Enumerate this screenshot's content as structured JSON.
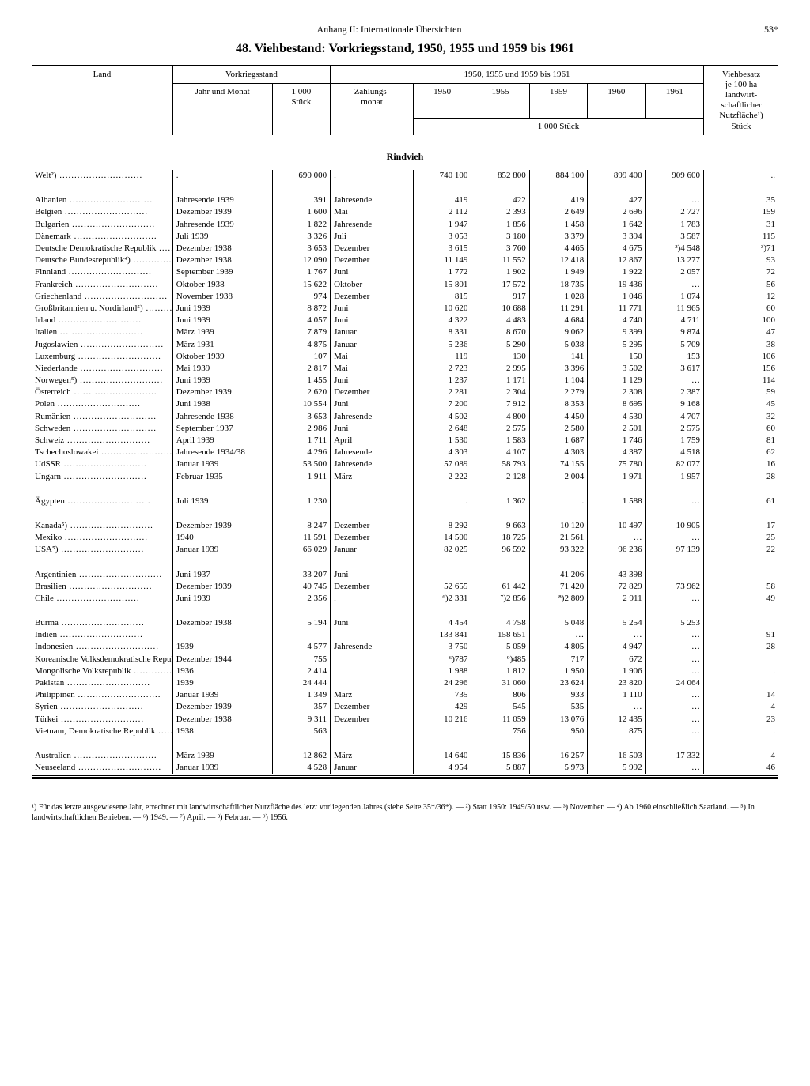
{
  "header": {
    "running": "Anhang II: Internationale Übersichten",
    "page": "53*",
    "title": "48. Viehbestand: Vorkriegsstand, 1950, 1955 und 1959 bis 1961"
  },
  "columns": {
    "land": "Land",
    "prewar": "Vorkriegsstand",
    "year_month": "Jahr und Monat",
    "thousand_head": "1 000\nStück",
    "period": "1950, 1955 und 1959 bis 1961",
    "count_month": "Zählungs-\nmonat",
    "y1950": "1950",
    "y1955": "1955",
    "y1959": "1959",
    "y1960": "1960",
    "y1961": "1961",
    "unit_bottom": "1 000 Stück",
    "density": "Viehbesatz\nje 100 ha\nlandwirt-\nschaftlicher\nNutzfläche¹)\nStück"
  },
  "section": "Rindvieh",
  "groups": [
    {
      "rows": [
        {
          "land": "Welt²)",
          "pre_month": ".",
          "pre": "690 000",
          "cmonth": ".",
          "v1950": "740 100",
          "v1955": "852 800",
          "v1959": "884 100",
          "v1960": "899 400",
          "v1961": "909 600",
          "density": ".."
        }
      ]
    },
    {
      "rows": [
        {
          "land": "Albanien",
          "pre_month": "Jahresende 1939",
          "pre": "391",
          "cmonth": "Jahresende",
          "v1950": "419",
          "v1955": "422",
          "v1959": "419",
          "v1960": "427",
          "v1961": "…",
          "density": "35"
        },
        {
          "land": "Belgien",
          "pre_month": "Dezember 1939",
          "pre": "1 600",
          "cmonth": "Mai",
          "v1950": "2 112",
          "v1955": "2 393",
          "v1959": "2 649",
          "v1960": "2 696",
          "v1961": "2 727",
          "density": "159"
        },
        {
          "land": "Bulgarien",
          "pre_month": "Jahresende 1939",
          "pre": "1 822",
          "cmonth": "Jahresende",
          "v1950": "1 947",
          "v1955": "1 856",
          "v1959": "1 458",
          "v1960": "1 642",
          "v1961": "1 783",
          "density": "31"
        },
        {
          "land": "Dänemark",
          "pre_month": "Juli 1939",
          "pre": "3 326",
          "cmonth": "Juli",
          "v1950": "3 053",
          "v1955": "3 180",
          "v1959": "3 379",
          "v1960": "3 394",
          "v1961": "3 587",
          "density": "115"
        },
        {
          "land": "Deutsche Demokratische Republik",
          "pre_month": "Dezember 1938",
          "pre": "3 653",
          "cmonth": "Dezember",
          "v1950": "3 615",
          "v1955": "3 760",
          "v1959": "4 465",
          "v1960": "4 675",
          "v1961": "³)4 548",
          "density": "³)71"
        },
        {
          "land": "Deutsche Bundesrepublik⁴)",
          "pre_month": "Dezember 1938",
          "pre": "12 090",
          "cmonth": "Dezember",
          "v1950": "11 149",
          "v1955": "11 552",
          "v1959": "12 418",
          "v1960": "12 867",
          "v1961": "13 277",
          "density": "93"
        },
        {
          "land": "Finnland",
          "pre_month": "September 1939",
          "pre": "1 767",
          "cmonth": "Juni",
          "v1950": "1 772",
          "v1955": "1 902",
          "v1959": "1 949",
          "v1960": "1 922",
          "v1961": "2 057",
          "density": "72"
        },
        {
          "land": "Frankreich",
          "pre_month": "Oktober 1938",
          "pre": "15 622",
          "cmonth": "Oktober",
          "v1950": "15 801",
          "v1955": "17 572",
          "v1959": "18 735",
          "v1960": "19 436",
          "v1961": "…",
          "density": "56"
        },
        {
          "land": "Griechenland",
          "pre_month": "November 1938",
          "pre": "974",
          "cmonth": "Dezember",
          "v1950": "815",
          "v1955": "917",
          "v1959": "1 028",
          "v1960": "1 046",
          "v1961": "1 074",
          "density": "12"
        },
        {
          "land": "Großbritannien u. Nordirland⁵)",
          "pre_month": "Juni 1939",
          "pre": "8 872",
          "cmonth": "Juni",
          "v1950": "10 620",
          "v1955": "10 688",
          "v1959": "11 291",
          "v1960": "11 771",
          "v1961": "11 965",
          "density": "60"
        },
        {
          "land": "Irland",
          "pre_month": "Juni 1939",
          "pre": "4 057",
          "cmonth": "Juni",
          "v1950": "4 322",
          "v1955": "4 483",
          "v1959": "4 684",
          "v1960": "4 740",
          "v1961": "4 711",
          "density": "100"
        },
        {
          "land": "Italien",
          "pre_month": "März 1939",
          "pre": "7 879",
          "cmonth": "Januar",
          "v1950": "8 331",
          "v1955": "8 670",
          "v1959": "9 062",
          "v1960": "9 399",
          "v1961": "9 874",
          "density": "47"
        },
        {
          "land": "Jugoslawien",
          "pre_month": "März 1931",
          "pre": "4 875",
          "cmonth": "Januar",
          "v1950": "5 236",
          "v1955": "5 290",
          "v1959": "5 038",
          "v1960": "5 295",
          "v1961": "5 709",
          "density": "38"
        },
        {
          "land": "Luxemburg",
          "pre_month": "Oktober 1939",
          "pre": "107",
          "cmonth": "Mai",
          "v1950": "119",
          "v1955": "130",
          "v1959": "141",
          "v1960": "150",
          "v1961": "153",
          "density": "106"
        },
        {
          "land": "Niederlande",
          "pre_month": "Mai 1939",
          "pre": "2 817",
          "cmonth": "Mai",
          "v1950": "2 723",
          "v1955": "2 995",
          "v1959": "3 396",
          "v1960": "3 502",
          "v1961": "3 617",
          "density": "156"
        },
        {
          "land": "Norwegen⁵)",
          "pre_month": "Juni 1939",
          "pre": "1 455",
          "cmonth": "Juni",
          "v1950": "1 237",
          "v1955": "1 171",
          "v1959": "1 104",
          "v1960": "1 129",
          "v1961": "…",
          "density": "114"
        },
        {
          "land": "Österreich",
          "pre_month": "Dezember 1939",
          "pre": "2 620",
          "cmonth": "Dezember",
          "v1950": "2 281",
          "v1955": "2 304",
          "v1959": "2 279",
          "v1960": "2 308",
          "v1961": "2 387",
          "density": "59"
        },
        {
          "land": "Polen",
          "pre_month": "Juni 1938",
          "pre": "10 554",
          "cmonth": "Juni",
          "v1950": "7 200",
          "v1955": "7 912",
          "v1959": "8 353",
          "v1960": "8 695",
          "v1961": "9 168",
          "density": "45"
        },
        {
          "land": "Rumänien",
          "pre_month": "Jahresende 1938",
          "pre": "3 653",
          "cmonth": "Jahresende",
          "v1950": "4 502",
          "v1955": "4 800",
          "v1959": "4 450",
          "v1960": "4 530",
          "v1961": "4 707",
          "density": "32"
        },
        {
          "land": "Schweden",
          "pre_month": "September 1937",
          "pre": "2 986",
          "cmonth": "Juni",
          "v1950": "2 648",
          "v1955": "2 575",
          "v1959": "2 580",
          "v1960": "2 501",
          "v1961": "2 575",
          "density": "60"
        },
        {
          "land": "Schweiz",
          "pre_month": "April 1939",
          "pre": "1 711",
          "cmonth": "April",
          "v1950": "1 530",
          "v1955": "1 583",
          "v1959": "1 687",
          "v1960": "1 746",
          "v1961": "1 759",
          "density": "81"
        },
        {
          "land": "Tschechoslowakei",
          "pre_month": "Jahresende 1934/38",
          "pre": "4 296",
          "cmonth": "Jahresende",
          "v1950": "4 303",
          "v1955": "4 107",
          "v1959": "4 303",
          "v1960": "4 387",
          "v1961": "4 518",
          "density": "62"
        },
        {
          "land": "UdSSR",
          "pre_month": "Januar 1939",
          "pre": "53 500",
          "cmonth": "Jahresende",
          "v1950": "57 089",
          "v1955": "58 793",
          "v1959": "74 155",
          "v1960": "75 780",
          "v1961": "82 077",
          "density": "16"
        },
        {
          "land": "Ungarn",
          "pre_month": "Februar 1935",
          "pre": "1 911",
          "cmonth": "März",
          "v1950": "2 222",
          "v1955": "2 128",
          "v1959": "2 004",
          "v1960": "1 971",
          "v1961": "1 957",
          "density": "28"
        }
      ]
    },
    {
      "rows": [
        {
          "land": "Ägypten",
          "pre_month": "Juli 1939",
          "pre": "1 230",
          "cmonth": ".",
          "v1950": ".",
          "v1955": "1 362",
          "v1959": ".",
          "v1960": "1 588",
          "v1961": "…",
          "density": "61"
        }
      ]
    },
    {
      "rows": [
        {
          "land": "Kanada⁵)",
          "pre_month": "Dezember 1939",
          "pre": "8 247",
          "cmonth": "Dezember",
          "v1950": "8 292",
          "v1955": "9 663",
          "v1959": "10 120",
          "v1960": "10 497",
          "v1961": "10 905",
          "density": "17"
        },
        {
          "land": "Mexiko",
          "pre_month": "1940",
          "pre": "11 591",
          "cmonth": "Dezember",
          "v1950": "14 500",
          "v1955": "18 725",
          "v1959": "21 561",
          "v1960": "…",
          "v1961": "…",
          "density": "25"
        },
        {
          "land": "USA⁵)",
          "pre_month": "Januar 1939",
          "pre": "66 029",
          "cmonth": "Januar",
          "v1950": "82 025",
          "v1955": "96 592",
          "v1959": "93 322",
          "v1960": "96 236",
          "v1961": "97 139",
          "density": "22"
        }
      ]
    },
    {
      "rows": [
        {
          "land": "Argentinien",
          "pre_month": "Juni 1937",
          "pre": "33 207",
          "cmonth": "Juni",
          "v1950": "",
          "v1955": "",
          "v1959": "41 206",
          "v1960": "43 398",
          "v1961": "",
          "density": ""
        },
        {
          "land": "Brasilien",
          "pre_month": "Dezember 1939",
          "pre": "40 745",
          "cmonth": "Dezember",
          "v1950": "52 655",
          "v1955": "61 442",
          "v1959": "71 420",
          "v1960": "72 829",
          "v1961": "73 962",
          "density": "58"
        },
        {
          "land": "Chile",
          "pre_month": "Juni 1939",
          "pre": "2 356",
          "cmonth": ".",
          "v1950": "⁶)2 331",
          "v1955": "⁷)2 856",
          "v1959": "⁸)2 809",
          "v1960": "2 911",
          "v1961": "…",
          "density": "49"
        }
      ]
    },
    {
      "rows": [
        {
          "land": "Burma",
          "pre_month": "Dezember 1938",
          "pre": "5 194",
          "cmonth": "Juni",
          "v1950": "4 454",
          "v1955": "4 758",
          "v1959": "5 048",
          "v1960": "5 254",
          "v1961": "5 253",
          "density": ""
        },
        {
          "land": "Indien",
          "pre_month": "",
          "pre": "",
          "cmonth": "",
          "v1950": "133 841",
          "v1955": "158 651",
          "v1959": "…",
          "v1960": "…",
          "v1961": "…",
          "density": "91"
        },
        {
          "land": "Indonesien",
          "pre_month": "1939",
          "pre": "4 577",
          "cmonth": "Jahresende",
          "v1950": "3 750",
          "v1955": "5 059",
          "v1959": "4 805",
          "v1960": "4 947",
          "v1961": "…",
          "density": "28"
        },
        {
          "land": "Koreanische Volksdemokratische Republik",
          "pre_month": "Dezember 1944",
          "pre": "755",
          "cmonth": "",
          "v1950": "⁶)787",
          "v1955": "⁹)485",
          "v1959": "717",
          "v1960": "672",
          "v1961": "…",
          "density": ""
        },
        {
          "land": "Mongolische Volksrepublik",
          "pre_month": "1936",
          "pre": "2 414",
          "cmonth": "",
          "v1950": "1 988",
          "v1955": "1 812",
          "v1959": "1 950",
          "v1960": "1 906",
          "v1961": "…",
          "density": "."
        },
        {
          "land": "Pakistan",
          "pre_month": "1939",
          "pre": "24 444",
          "cmonth": "",
          "v1950": "24 296",
          "v1955": "31 060",
          "v1959": "23 624",
          "v1960": "23 820",
          "v1961": "24 064",
          "density": ""
        },
        {
          "land": "Philippinen",
          "pre_month": "Januar 1939",
          "pre": "1 349",
          "cmonth": "März",
          "v1950": "735",
          "v1955": "806",
          "v1959": "933",
          "v1960": "1 110",
          "v1961": "…",
          "density": "14"
        },
        {
          "land": "Syrien",
          "pre_month": "Dezember 1939",
          "pre": "357",
          "cmonth": "Dezember",
          "v1950": "429",
          "v1955": "545",
          "v1959": "535",
          "v1960": "…",
          "v1961": "…",
          "density": "4"
        },
        {
          "land": "Türkei",
          "pre_month": "Dezember 1938",
          "pre": "9 311",
          "cmonth": "Dezember",
          "v1950": "10 216",
          "v1955": "11 059",
          "v1959": "13 076",
          "v1960": "12 435",
          "v1961": "…",
          "density": "23"
        },
        {
          "land": "Vietnam, Demokratische Republik",
          "pre_month": "1938",
          "pre": "563",
          "cmonth": "",
          "v1950": "",
          "v1955": "756",
          "v1959": "950",
          "v1960": "875",
          "v1961": "…",
          "density": "."
        }
      ]
    },
    {
      "rows": [
        {
          "land": "Australien",
          "pre_month": "März 1939",
          "pre": "12 862",
          "cmonth": "März",
          "v1950": "14 640",
          "v1955": "15 836",
          "v1959": "16 257",
          "v1960": "16 503",
          "v1961": "17 332",
          "density": "4"
        },
        {
          "land": "Neuseeland",
          "pre_month": "Januar 1939",
          "pre": "4 528",
          "cmonth": "Januar",
          "v1950": "4 954",
          "v1955": "5 887",
          "v1959": "5 973",
          "v1960": "5 992",
          "v1961": "…",
          "density": "46"
        }
      ]
    }
  ],
  "footnotes": "¹) Für das letzte ausgewiesene Jahr, errechnet mit landwirtschaftlicher Nutzfläche des letzt vorliegenden Jahres (siehe Seite 35*/36*). — ²) Statt 1950: 1949/50 usw. — ³) November. — ⁴) Ab 1960 einschließlich Saarland. — ⁵) In landwirtschaftlichen Betrieben. — ⁶) 1949. — ⁷) April. — ⁸) Februar. — ⁹) 1956."
}
